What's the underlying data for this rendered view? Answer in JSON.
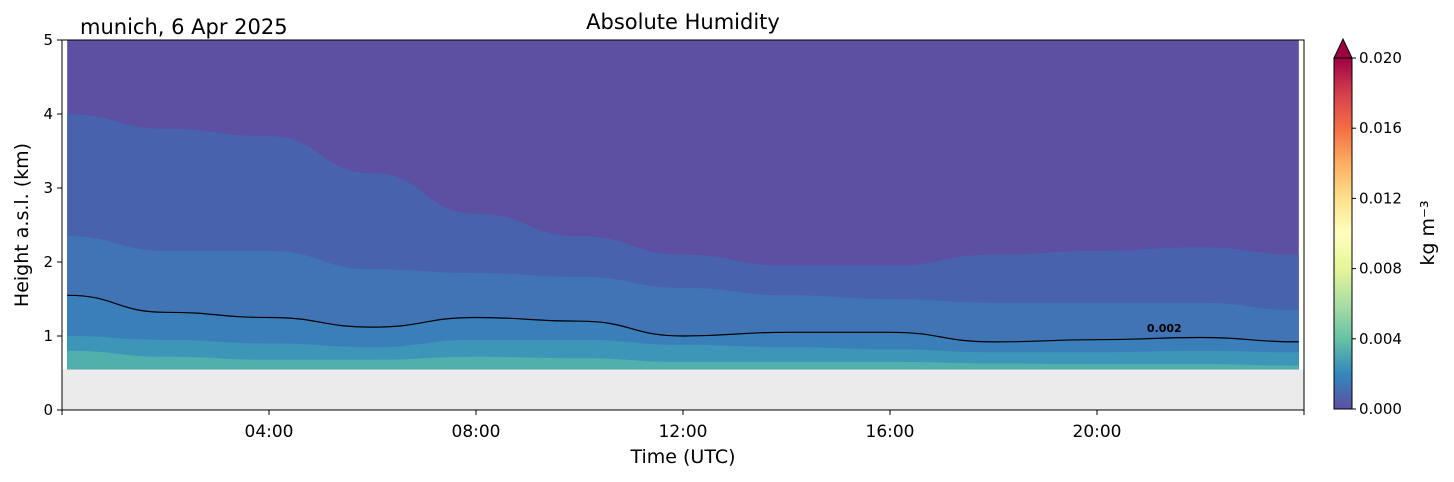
{
  "header": {
    "location_date": "munich, 6 Apr 2025",
    "title": "Absolute Humidity"
  },
  "chart_data": {
    "type": "heatmap",
    "title": "Absolute Humidity",
    "location_date": "munich, 6 Apr 2025",
    "xlabel": "Time (UTC)",
    "ylabel": "Height a.s.l. (km)",
    "xlim_hours": [
      0,
      24
    ],
    "ylim": [
      0,
      5
    ],
    "x_ticks": [
      {
        "hour": 4,
        "label": "04:00"
      },
      {
        "hour": 8,
        "label": "08:00"
      },
      {
        "hour": 12,
        "label": "12:00"
      },
      {
        "hour": 16,
        "label": "16:00"
      },
      {
        "hour": 20,
        "label": "20:00"
      }
    ],
    "y_ticks": [
      "0",
      "1",
      "2",
      "3",
      "4",
      "5"
    ],
    "data_bottom_km": 0.55,
    "no_data_color": "#ebebeb",
    "colorbar": {
      "label": "kg m⁻³",
      "range": [
        0.0,
        0.02
      ],
      "ticks": [
        "0.000",
        "0.004",
        "0.008",
        "0.012",
        "0.016",
        "0.020"
      ],
      "extend": "max",
      "colormap": "Spectral_r"
    },
    "contour": {
      "level": 0.002,
      "label": "0.002",
      "color": "#000000"
    },
    "hours": [
      0.1,
      2,
      4,
      6,
      8,
      10,
      12,
      14,
      16,
      18,
      20,
      22,
      23.9
    ],
    "contour_heights_km": [
      1.55,
      1.32,
      1.25,
      1.12,
      1.25,
      1.2,
      1.0,
      1.05,
      1.05,
      0.92,
      0.95,
      0.98,
      0.92
    ],
    "bands": [
      {
        "level": 0.004,
        "color": "#51b0ab",
        "heights_km": [
          0.8,
          0.72,
          0.68,
          0.68,
          0.72,
          0.7,
          0.65,
          0.65,
          0.65,
          0.63,
          0.62,
          0.62,
          0.6
        ]
      },
      {
        "level": 0.003,
        "color": "#3d95b8",
        "heights_km": [
          1.0,
          0.95,
          0.9,
          0.85,
          0.95,
          0.95,
          0.88,
          0.85,
          0.82,
          0.78,
          0.78,
          0.8,
          0.78
        ]
      },
      {
        "level": 0.002,
        "color": "#3a7fba",
        "heights_km": [
          1.55,
          1.32,
          1.25,
          1.12,
          1.25,
          1.2,
          1.0,
          1.05,
          1.05,
          0.92,
          0.95,
          0.98,
          0.92
        ]
      },
      {
        "level": 0.0015,
        "color": "#4174b5",
        "heights_km": [
          2.35,
          2.15,
          2.15,
          1.9,
          1.85,
          1.8,
          1.65,
          1.55,
          1.5,
          1.45,
          1.45,
          1.45,
          1.35
        ]
      },
      {
        "level": 0.001,
        "color": "#4962ad",
        "heights_km": [
          4.0,
          3.8,
          3.7,
          3.2,
          2.65,
          2.35,
          2.1,
          1.95,
          1.95,
          2.1,
          2.15,
          2.2,
          2.1
        ]
      }
    ],
    "background_color": "#5d4fa2"
  }
}
